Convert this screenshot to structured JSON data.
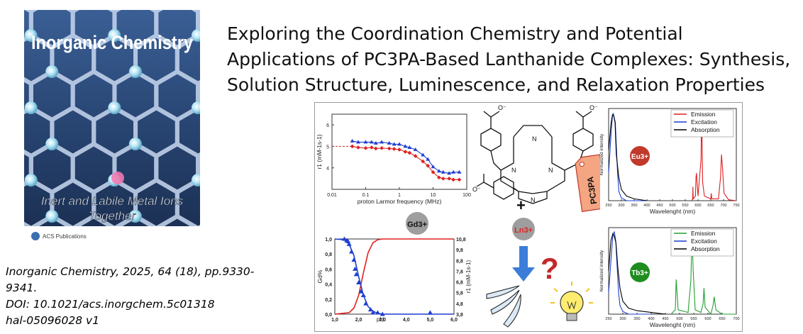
{
  "article": {
    "title_lines": [
      "Exploring the Coordination Chemistry and Potential",
      "Applications of PC3PA-Based Lanthanide Complexes: Synthesis,",
      "Solution Structure, Luminescence, and Relaxation Properties"
    ],
    "citation_lines": [
      "Inorganic Chemistry, 2025, 64 (18), pp.9330-",
      "9341.",
      "DOI: 10.1021/acs.inorgchem.5c01318",
      "hal-05096028 v1"
    ]
  },
  "cover": {
    "journal_title": "Inorganic Chemistry",
    "tagline_1": "Inert and Labile Metal Ions",
    "tagline_2": "Together",
    "publisher": "ACS Publications"
  },
  "toc": {
    "gd_label": "Gd3+",
    "ln_label": "Ln3+",
    "eu_label": "Eu3+",
    "tb_label": "Tb3+",
    "ligand_tag": "PC3PA",
    "plus": "+",
    "question": "?",
    "colors": {
      "red": "#e02020",
      "blue": "#1f3fd0",
      "green": "#20a030",
      "eu_badge": "#c0392b",
      "tb_badge": "#1e8c1e",
      "gray_badge": "#9e9e9e",
      "arrow": "#3b7dd8",
      "tag": "#f4a582"
    }
  },
  "chart_data": [
    {
      "type": "scatter",
      "name_in_figure": "NMRD profile",
      "ylabel": "r1 (mM-1s-1)",
      "xlabel": "proton Larmor frequency (MHz)",
      "x_scale": "log",
      "xlim": [
        0.01,
        100
      ],
      "ylim": [
        3,
        6.5
      ],
      "x_ticks": [
        "0.01",
        "0.1",
        "1",
        "10",
        "100"
      ],
      "y_ticks": [
        "4",
        "5",
        "6"
      ],
      "series": [
        {
          "color": "#e02020",
          "x": [
            0.04,
            0.06,
            0.1,
            0.15,
            0.2,
            0.3,
            0.5,
            0.7,
            1,
            1.5,
            2,
            3,
            5,
            7,
            10,
            15,
            20,
            30,
            40,
            60
          ],
          "y": [
            5.0,
            4.95,
            4.92,
            4.95,
            4.9,
            4.92,
            4.9,
            4.88,
            4.85,
            4.75,
            4.7,
            4.55,
            4.3,
            4.1,
            3.8,
            3.55,
            3.5,
            3.5,
            3.45,
            3.45
          ]
        },
        {
          "color": "#1f3fd0",
          "x": [
            0.04,
            0.06,
            0.1,
            0.15,
            0.2,
            0.3,
            0.5,
            0.7,
            1,
            1.5,
            2,
            3,
            5,
            7,
            10,
            15,
            20,
            30,
            40,
            60
          ],
          "y": [
            5.25,
            5.2,
            5.2,
            5.2,
            5.15,
            5.2,
            5.15,
            5.1,
            5.1,
            5.0,
            4.95,
            4.85,
            4.6,
            4.4,
            4.05,
            3.85,
            3.8,
            3.75,
            3.8,
            3.8
          ]
        }
      ]
    },
    {
      "type": "line",
      "name_in_figure": "pH titration",
      "xlabel": "pH",
      "ylabel": "Gd%",
      "y2label": "r1 (mM-1s-1)",
      "xlim": [
        1.0,
        6.0
      ],
      "ylim": [
        0.0,
        1.0
      ],
      "y2lim": [
        3.8,
        10.8
      ],
      "x_ticks": [
        "1,0",
        "2,0",
        "3,0",
        "4,0",
        "5,0",
        "6,0"
      ],
      "y_ticks": [
        "0,0",
        "0,2",
        "0,4",
        "0,6",
        "0,8",
        "1,0"
      ],
      "y2_ticks": [
        "3,8",
        "4,8",
        "5,8",
        "6,8",
        "7,8",
        "8,8",
        "9,8",
        "10,8"
      ],
      "series": [
        {
          "color": "#e02020",
          "x": [
            1.0,
            1.6,
            1.8,
            2.0,
            2.2,
            2.4,
            2.6,
            2.8,
            3.0,
            3.4,
            4,
            5,
            6
          ],
          "y": [
            0.0,
            0.02,
            0.08,
            0.25,
            0.55,
            0.82,
            0.95,
            0.99,
            1.0,
            1.0,
            1.0,
            1.0,
            1.0
          ]
        },
        {
          "color": "#1f3fd0",
          "x": [
            1.0,
            1.4,
            1.6,
            1.8,
            2.0,
            2.2,
            2.4,
            2.6,
            2.8,
            3.0,
            3.4,
            4,
            5,
            6
          ],
          "y": [
            1.0,
            0.99,
            0.93,
            0.78,
            0.5,
            0.25,
            0.1,
            0.04,
            0.01,
            0.0,
            0.0,
            0.0,
            0.0,
            0.0
          ]
        },
        {
          "color": "#1f3fd0",
          "style": "triangles",
          "x": [
            1.4,
            1.5,
            1.55,
            1.6,
            1.7,
            1.8,
            1.85,
            1.9,
            2.0,
            2.1,
            2.2,
            2.3,
            2.5,
            2.6,
            2.8,
            3.0,
            5.0
          ],
          "y": [
            1.0,
            0.98,
            0.97,
            0.93,
            0.83,
            0.72,
            0.6,
            0.53,
            0.42,
            0.3,
            0.25,
            0.14,
            0.06,
            0.02,
            0.02,
            0.0,
            0.02
          ]
        }
      ]
    },
    {
      "type": "line",
      "name_in_figure": "Eu spectra",
      "xlabel": "Wavelenght (nm)",
      "ylabel": "Normalized intensity",
      "xlim": [
        250,
        750
      ],
      "x_ticks": [
        "250",
        "300",
        "350",
        "400",
        "450",
        "500",
        "550",
        "600",
        "650",
        "700",
        "750"
      ],
      "legend": [
        "Emission",
        "Excitation",
        "Absorption"
      ],
      "legend_position": "top-right",
      "series": [
        {
          "name": "Emission",
          "color": "#e02020",
          "x": [
            575,
            579,
            580,
            581,
            590,
            592,
            594,
            600,
            612,
            614,
            616,
            618,
            625,
            650,
            652,
            654,
            680,
            688,
            692,
            696,
            702,
            720,
            750
          ],
          "y": [
            0.0,
            0.02,
            0.15,
            0.02,
            0.05,
            0.25,
            0.3,
            0.05,
            0.45,
            0.98,
            0.6,
            0.2,
            0.05,
            0.02,
            0.08,
            0.02,
            0.02,
            0.25,
            0.5,
            0.35,
            0.08,
            0.01,
            0.0
          ]
        },
        {
          "name": "Excitation",
          "color": "#1f3fd0",
          "x": [
            250,
            260,
            265,
            268,
            272,
            276,
            280,
            285,
            290,
            300,
            320,
            400
          ],
          "y": [
            0.3,
            0.75,
            0.92,
            0.95,
            0.9,
            0.85,
            0.6,
            0.3,
            0.1,
            0.03,
            0.0,
            0.0
          ]
        },
        {
          "name": "Absorption",
          "color": "#000000",
          "x": [
            250,
            260,
            265,
            270,
            275,
            280,
            290,
            300,
            320,
            350,
            400
          ],
          "y": [
            0.55,
            0.85,
            0.93,
            0.92,
            0.85,
            0.5,
            0.25,
            0.12,
            0.05,
            0.02,
            0.0
          ]
        }
      ]
    },
    {
      "type": "line",
      "name_in_figure": "Tb spectra",
      "xlabel": "Wavelenght (nm)",
      "ylabel": "Normalized intensity",
      "xlim": [
        250,
        700
      ],
      "x_ticks": [
        "250",
        "300",
        "350",
        "400",
        "450",
        "500",
        "550",
        "600",
        "650",
        "700"
      ],
      "legend": [
        "Emission",
        "Excitation",
        "Absorption"
      ],
      "legend_position": "top-right",
      "series": [
        {
          "name": "Emission",
          "color": "#20a030",
          "x": [
            470,
            485,
            488,
            490,
            495,
            530,
            540,
            544,
            548,
            555,
            575,
            583,
            586,
            590,
            610,
            618,
            622,
            628,
            650,
            700
          ],
          "y": [
            0.0,
            0.05,
            0.4,
            0.3,
            0.05,
            0.02,
            0.4,
            0.95,
            0.5,
            0.05,
            0.02,
            0.12,
            0.3,
            0.08,
            0.0,
            0.1,
            0.2,
            0.05,
            0.0,
            0.0
          ]
        },
        {
          "name": "Excitation",
          "color": "#1f3fd0",
          "x": [
            250,
            260,
            265,
            270,
            275,
            280,
            285,
            290,
            300,
            320,
            400
          ],
          "y": [
            0.25,
            0.7,
            0.92,
            0.95,
            0.85,
            0.55,
            0.25,
            0.1,
            0.03,
            0.0,
            0.0
          ]
        },
        {
          "name": "Absorption",
          "color": "#000000",
          "x": [
            250,
            258,
            265,
            270,
            276,
            282,
            290,
            300,
            320,
            350,
            400,
            450
          ],
          "y": [
            0.5,
            0.85,
            0.93,
            0.9,
            0.82,
            0.55,
            0.3,
            0.15,
            0.07,
            0.04,
            0.02,
            0.0
          ]
        }
      ]
    }
  ]
}
